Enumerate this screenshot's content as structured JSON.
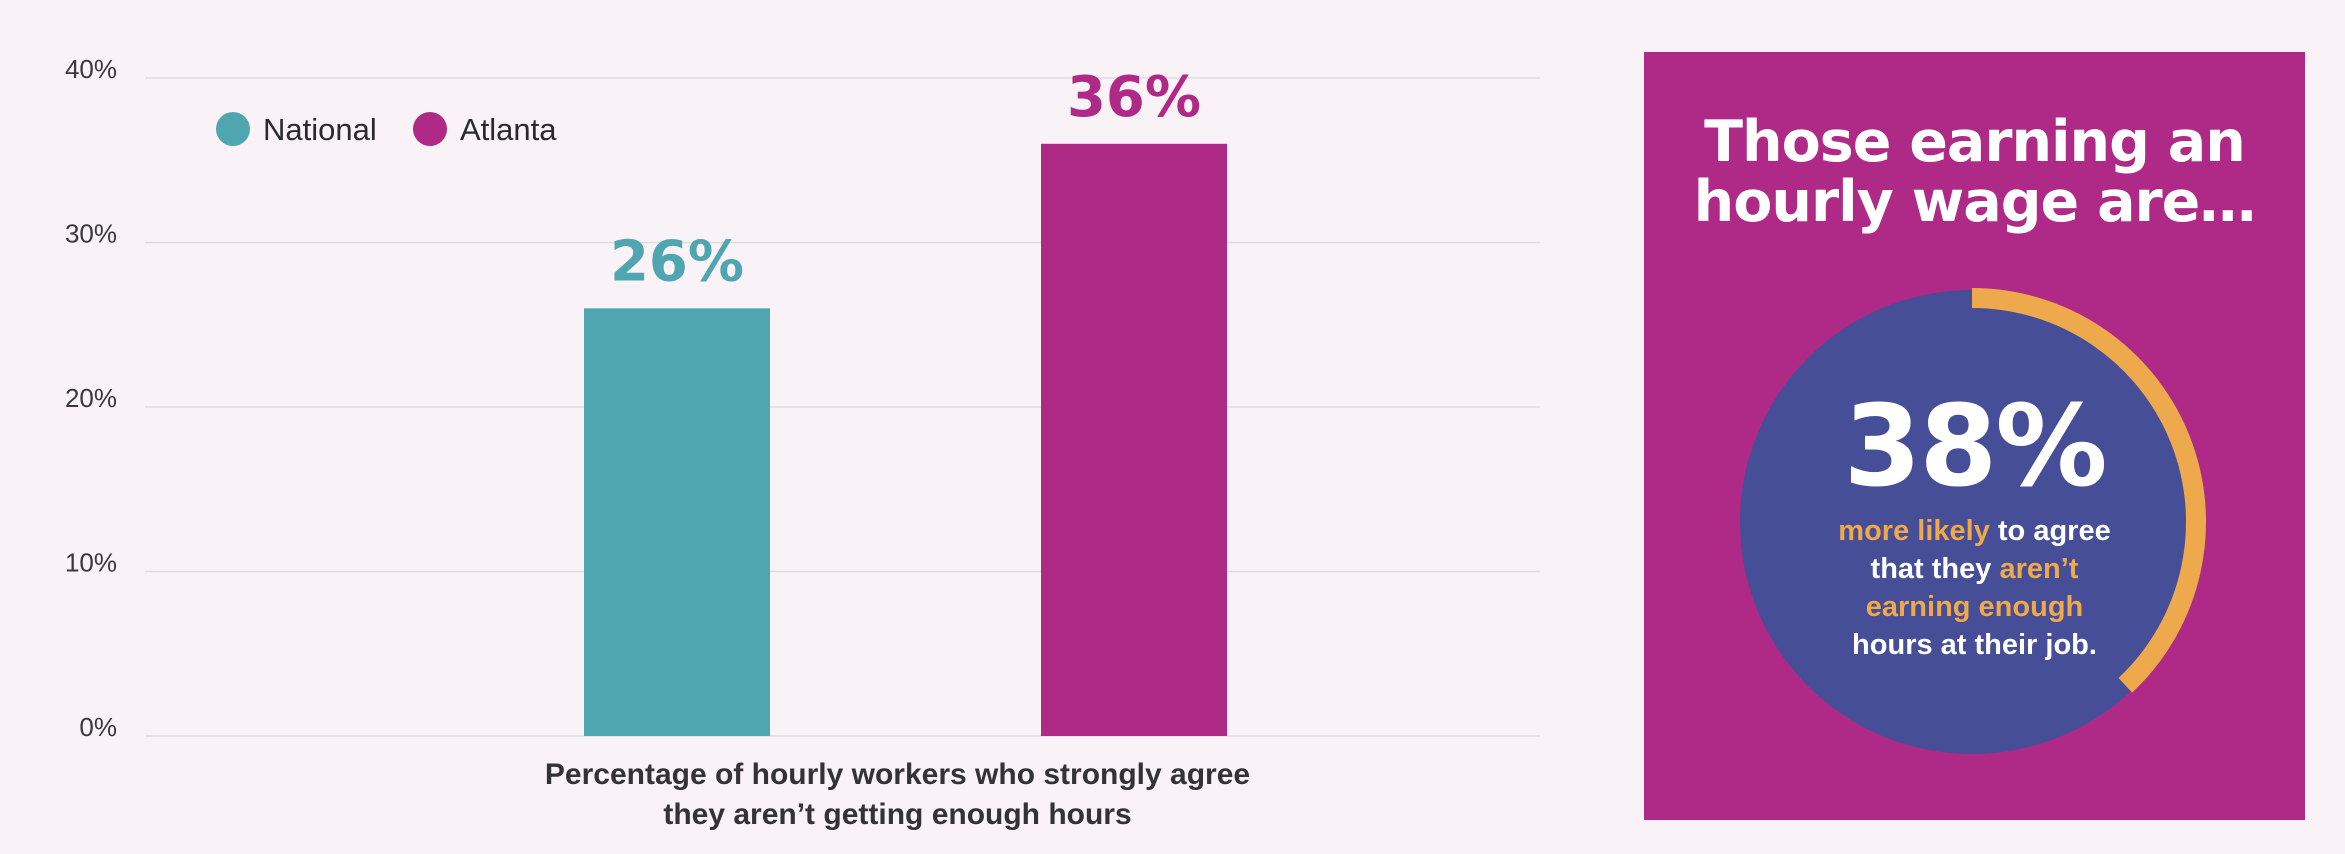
{
  "chart_data": {
    "type": "bar",
    "categories": [
      "National",
      "Atlanta"
    ],
    "values": [
      26,
      36
    ],
    "value_labels": [
      "26%",
      "36%"
    ],
    "colors": [
      "#4fa6b0",
      "#ae2a86"
    ],
    "ylim": [
      0,
      40
    ],
    "yticks": [
      0,
      10,
      20,
      30,
      40
    ],
    "ytick_labels": [
      "0%",
      "10%",
      "20%",
      "30%",
      "40%"
    ],
    "grid": true,
    "legend": {
      "placement": "top-left",
      "entries": [
        {
          "label": "National",
          "color": "#4fa6b0"
        },
        {
          "label": "Atlanta",
          "color": "#ae2a86"
        }
      ]
    },
    "xlabel_lines": [
      "Percentage of hourly workers who strongly agree",
      "they aren’t getting enough hours"
    ]
  },
  "side_panel": {
    "title_lines": [
      "Those earning an",
      "hourly wage are…"
    ],
    "stat_value": "38%",
    "stat_fraction": 0.38,
    "caption": {
      "line1_highlight": "more likely",
      "line1_rest": " to agree",
      "line2_start": "that they ",
      "line2_highlight": "aren’t",
      "line3_highlight": "earning enough",
      "line4": "hours at their job."
    },
    "colors": {
      "panel": "#ae2a86",
      "circle": "#454e96",
      "ring": "#eea94c",
      "highlight": "#eea94c"
    }
  }
}
